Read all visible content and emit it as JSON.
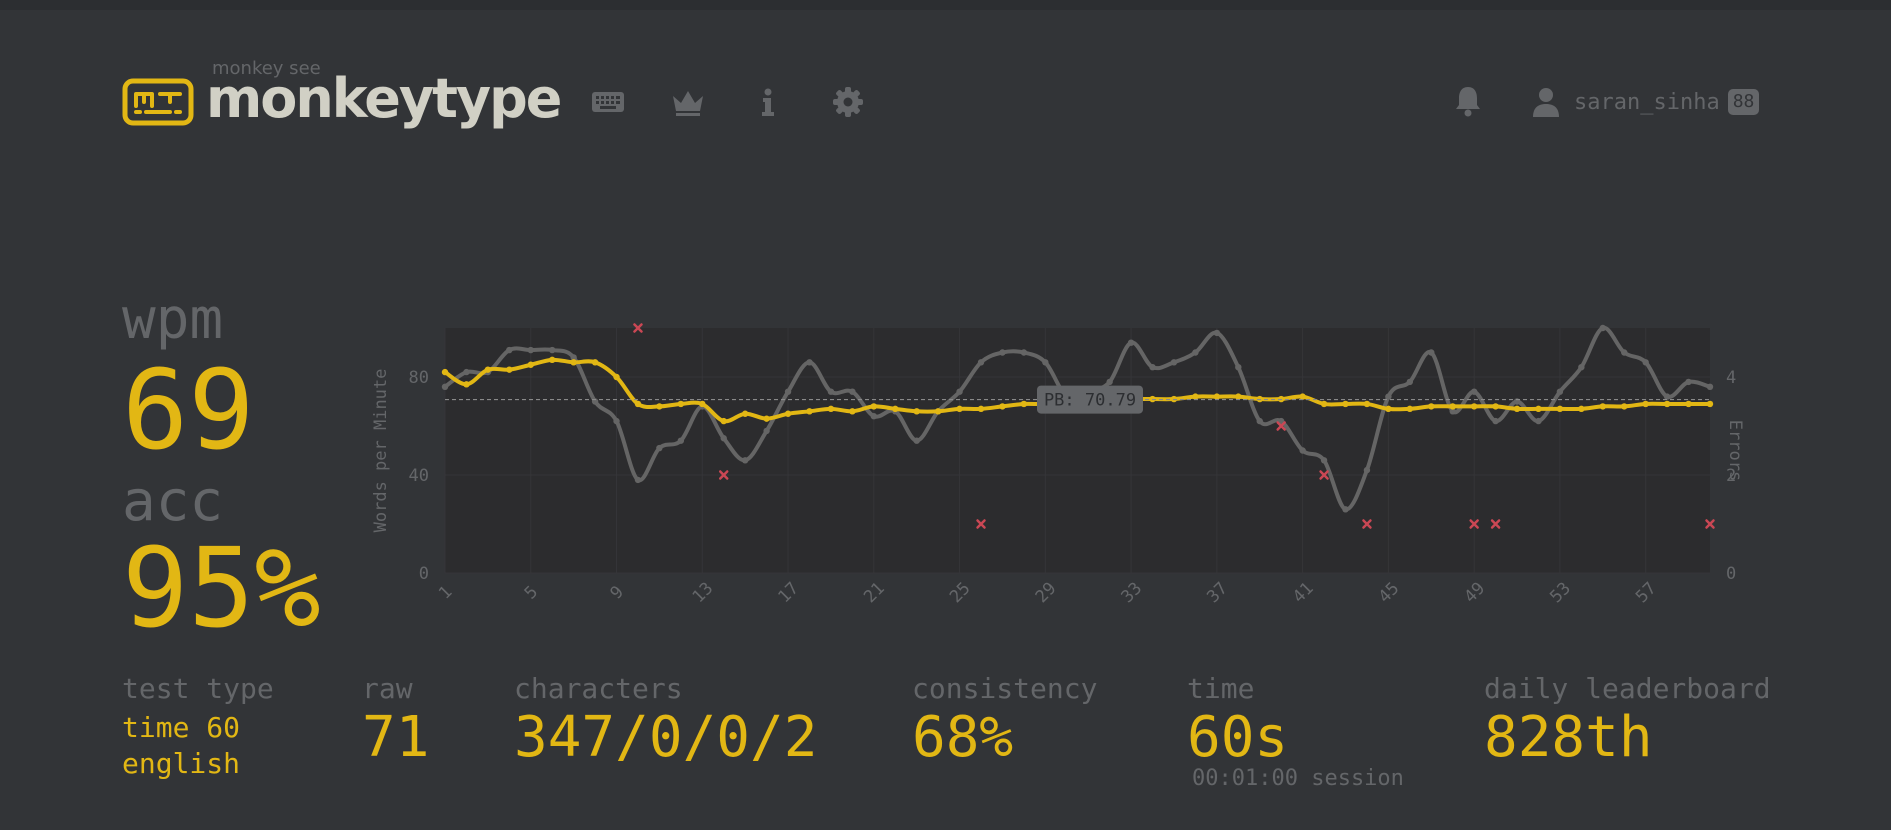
{
  "header": {
    "logo_top": "monkey see",
    "logo_main": "monkeytype",
    "nav_icons": [
      "keyboard-icon",
      "crown-icon",
      "info-icon",
      "gear-icon"
    ],
    "notification_icon": "bell-icon",
    "user": {
      "name": "saran_sinha",
      "level": "88"
    }
  },
  "result": {
    "wpm_label": "wpm",
    "wpm": "69",
    "acc_label": "acc",
    "acc": "95%"
  },
  "stats": {
    "test_type_label": "test type",
    "test_type_mode": "time 60",
    "test_type_language": "english",
    "raw_label": "raw",
    "raw": "71",
    "characters_label": "characters",
    "characters": "347/0/0/2",
    "consistency_label": "consistency",
    "consistency": "68%",
    "time_label": "time",
    "time": "60s",
    "session": "00:01:00 session",
    "leaderboard_label": "daily leaderboard",
    "leaderboard": "828th"
  },
  "colors": {
    "bg": "#323437",
    "plot_bg": "#2c2c2e",
    "main": "#e2b714",
    "sub": "#646669",
    "text": "#d1d0c5",
    "error": "#ca4754",
    "raw_line": "#656565"
  },
  "chart_data": {
    "type": "line",
    "ylabel": "Words per Minute",
    "y2label": "Errors",
    "ylim": [
      0,
      100
    ],
    "y2lim": [
      0,
      5
    ],
    "yticks": [
      0,
      40,
      80
    ],
    "y2ticks": [
      0,
      2,
      4
    ],
    "xlim": [
      1,
      60
    ],
    "xticks": [
      1,
      5,
      9,
      13,
      17,
      21,
      25,
      29,
      33,
      37,
      41,
      45,
      49,
      53,
      57
    ],
    "pb_line": 70.79,
    "pb_label": "PB: 70.79",
    "series": [
      {
        "role": "wpm",
        "color": "#e2b714",
        "values": [
          82,
          77,
          83,
          83,
          85,
          87,
          86,
          86,
          80,
          69,
          68,
          69,
          69,
          62,
          65,
          63,
          65,
          66,
          67,
          66,
          68,
          67,
          66,
          66,
          67,
          67,
          68,
          69,
          69,
          70,
          71,
          71,
          71,
          71,
          71,
          72,
          72,
          72,
          71,
          71,
          72,
          69,
          69,
          69,
          67,
          67,
          68,
          68,
          68,
          68,
          67,
          67,
          67,
          67,
          68,
          68,
          69,
          69,
          69,
          69
        ]
      },
      {
        "role": "raw",
        "color": "#656565",
        "values": [
          76,
          82,
          82,
          91,
          91,
          91,
          88,
          70,
          62,
          38,
          51,
          54,
          68,
          55,
          46,
          58,
          74,
          86,
          74,
          74,
          64,
          66,
          54,
          66,
          74,
          86,
          90,
          90,
          86,
          72,
          74,
          78,
          94,
          84,
          86,
          90,
          98,
          84,
          62,
          62,
          50,
          46,
          26,
          42,
          72,
          78,
          90,
          66,
          74,
          62,
          70,
          62,
          74,
          84,
          100,
          90,
          86,
          72,
          78,
          76
        ]
      }
    ],
    "errors": [
      {
        "x": 10,
        "y": 5
      },
      {
        "x": 14,
        "y": 2
      },
      {
        "x": 26,
        "y": 1
      },
      {
        "x": 40,
        "y": 3
      },
      {
        "x": 42,
        "y": 2
      },
      {
        "x": 44,
        "y": 1
      },
      {
        "x": 49,
        "y": 1
      },
      {
        "x": 50,
        "y": 1
      },
      {
        "x": 60,
        "y": 1
      }
    ]
  }
}
